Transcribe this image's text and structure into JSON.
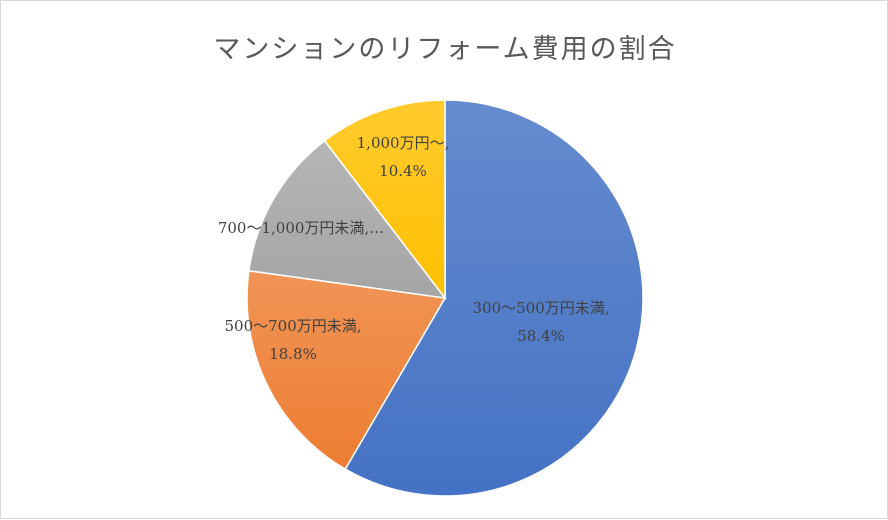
{
  "chart_data": {
    "type": "pie",
    "title": "マンションのリフォーム費用の割合",
    "slices": [
      {
        "label": "300～500万円未満",
        "value": 58.4,
        "color": "#4472c4",
        "data_label": [
          "300～500万円未満,",
          "58.4%"
        ]
      },
      {
        "label": "500～700万円未満",
        "value": 18.8,
        "color": "#ed7d31",
        "data_label": [
          "500～700万円未満,",
          "18.8%"
        ]
      },
      {
        "label": "700～1,000万円未満",
        "value": 12.4,
        "color": "#a5a5a5",
        "data_label": [
          "700～1,000万円未満,…"
        ]
      },
      {
        "label": "1,000万円～",
        "value": 10.4,
        "color": "#ffc000",
        "data_label": [
          "1,000万円～,",
          "10.4%"
        ]
      }
    ],
    "start_angle_deg": 0,
    "direction": "clockwise",
    "legend": "none"
  }
}
